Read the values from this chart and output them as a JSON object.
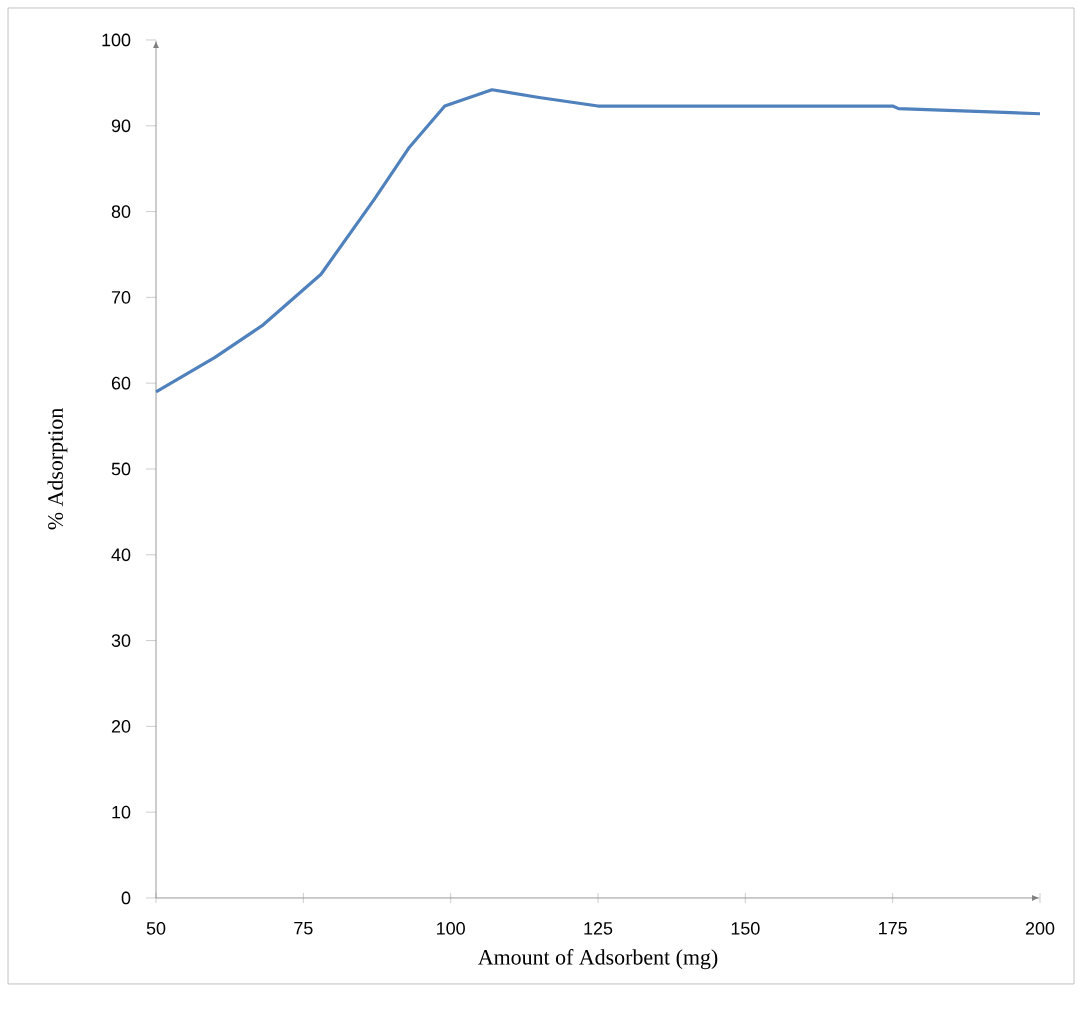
{
  "chart_data": {
    "type": "line",
    "xlabel": "Amount of Adsorbent (mg)",
    "ylabel": "% Adsorption",
    "x": [
      50,
      60,
      68,
      78,
      87,
      93,
      99,
      107,
      115,
      125,
      150,
      175,
      176,
      200
    ],
    "values": [
      59,
      63,
      66.7,
      72.7,
      81.4,
      87.5,
      92.3,
      94.2,
      93.3,
      92.3,
      92.3,
      92.3,
      92,
      91.4
    ],
    "color": "#4f81bd",
    "xlim": [
      50,
      200
    ],
    "ylim": [
      0,
      100
    ],
    "xticks": [
      50,
      75,
      100,
      125,
      150,
      175,
      200
    ],
    "yticks": [
      0,
      10,
      20,
      30,
      40,
      50,
      60,
      70,
      80,
      90,
      100
    ]
  }
}
